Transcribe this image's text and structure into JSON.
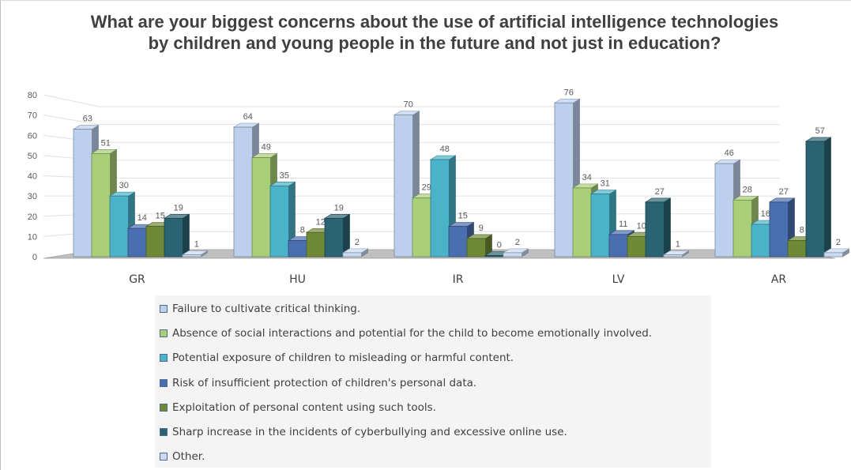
{
  "chart_data": {
    "type": "bar",
    "title": "What are your biggest concerns about the use of artificial intelligence technologies by children and young people in the future and not just in education?",
    "categories": [
      "GR",
      "HU",
      "IR",
      "LV",
      "AR"
    ],
    "series": [
      {
        "name": "Failure to cultivate critical thinking.",
        "color": "#bcd0ee",
        "values": [
          63,
          64,
          70,
          76,
          46
        ]
      },
      {
        "name": "Absence of social interactions and potential for the child to become emotionally involved.",
        "color": "#a9cf78",
        "values": [
          51,
          49,
          29,
          34,
          28
        ]
      },
      {
        "name": "Potential exposure of children to misleading or harmful content.",
        "color": "#4bb3c9",
        "values": [
          30,
          35,
          48,
          31,
          16
        ]
      },
      {
        "name": "Risk of insufficient protection of children's personal data.",
        "color": "#4a6fb0",
        "values": [
          14,
          8,
          15,
          11,
          27
        ]
      },
      {
        "name": "Exploitation of personal content using such tools.",
        "color": "#6f8a36",
        "values": [
          15,
          12,
          9,
          10,
          8
        ]
      },
      {
        "name": "Sharp increase in the incidents of cyberbullying and excessive online use.",
        "color": "#2a6472",
        "values": [
          19,
          19,
          0,
          27,
          57
        ]
      },
      {
        "name": "Other.",
        "color": "#c9daf2",
        "values": [
          1,
          2,
          2,
          1,
          2
        ]
      }
    ],
    "ylim": [
      0,
      80
    ],
    "yticks": [
      0,
      10,
      20,
      30,
      40,
      50,
      60,
      70,
      80
    ],
    "xlabel": "",
    "ylabel": "",
    "grid": true,
    "legend_position": "bottom",
    "data_labels": true,
    "three_d": true
  }
}
